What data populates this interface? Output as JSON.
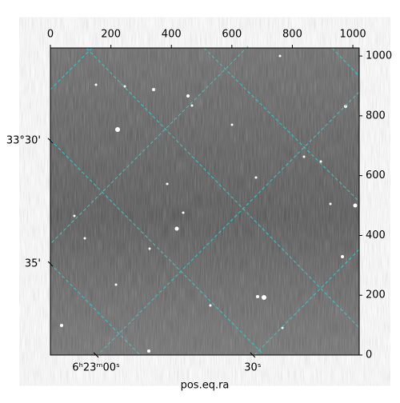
{
  "chart_data": {
    "type": "image",
    "xlabel": "pos.eq.ra",
    "xlim": [
      0,
      1021
    ],
    "ylim": [
      0,
      1027
    ],
    "xticks": [
      0,
      200,
      400,
      600,
      800,
      1000
    ],
    "yticks": [
      0,
      200,
      400,
      600,
      800,
      1000
    ],
    "bottom_ticks": [
      {
        "value": 151,
        "label": "6ʰ23ᵐ00ˢ"
      },
      {
        "value": 669,
        "label": "30ˢ"
      }
    ],
    "left_ticks": [
      {
        "value": 717,
        "label": "33°30'"
      },
      {
        "value": 305,
        "label": "35'"
      }
    ]
  }
}
